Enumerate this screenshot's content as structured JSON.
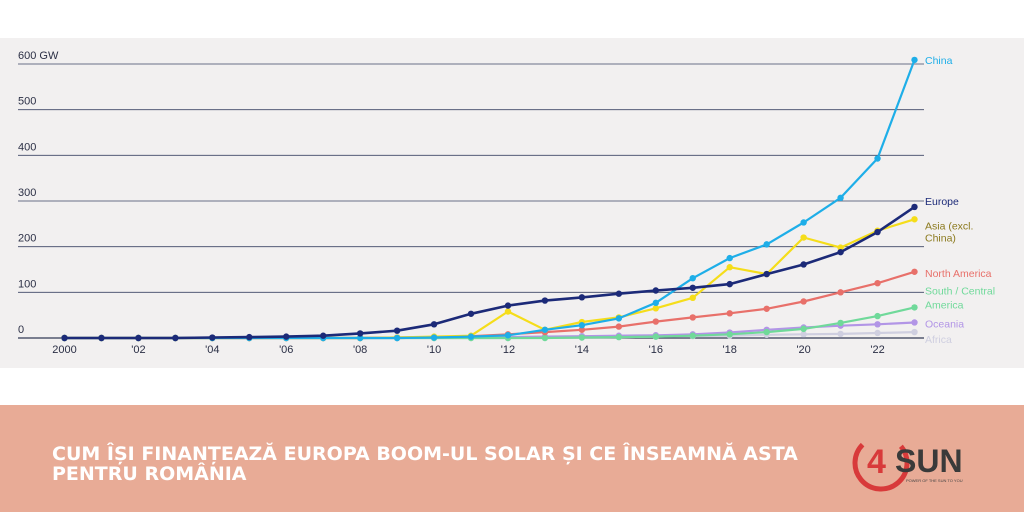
{
  "chart_data": {
    "type": "line",
    "x_ticks": [
      "2000",
      "'02",
      "'04",
      "'06",
      "'08",
      "'10",
      "'12",
      "'14",
      "'16",
      "'18",
      "'20",
      "'22"
    ],
    "x_tick_years": [
      2000,
      2002,
      2004,
      2006,
      2008,
      2010,
      2012,
      2014,
      2016,
      2018,
      2020,
      2022
    ],
    "xlim": [
      2000,
      2023
    ],
    "y_ticks": [
      {
        "value": 0,
        "label": "0"
      },
      {
        "value": 100,
        "label": "100"
      },
      {
        "value": 200,
        "label": "200"
      },
      {
        "value": 300,
        "label": "300"
      },
      {
        "value": 400,
        "label": "400"
      },
      {
        "value": 500,
        "label": "500"
      },
      {
        "value": 600,
        "label": "600 GW"
      }
    ],
    "ylim": [
      0,
      600
    ],
    "grid": true,
    "legend_placement": "right, end of lines",
    "series": [
      {
        "name": "China",
        "color": "#1eaee8",
        "x": [
          2000,
          2001,
          2002,
          2003,
          2004,
          2005,
          2006,
          2007,
          2008,
          2009,
          2010,
          2011,
          2012,
          2013,
          2014,
          2015,
          2016,
          2017,
          2018,
          2019,
          2020,
          2021,
          2022,
          2023
        ],
        "values": [
          0,
          0,
          0,
          0,
          0,
          0,
          0,
          0,
          0,
          0,
          1,
          3,
          6,
          18,
          28,
          43,
          77,
          131,
          175,
          205,
          253,
          307,
          393,
          609
        ]
      },
      {
        "name": "Europe",
        "color": "#1c2a78",
        "x": [
          2000,
          2001,
          2002,
          2003,
          2004,
          2005,
          2006,
          2007,
          2008,
          2009,
          2010,
          2011,
          2012,
          2013,
          2014,
          2015,
          2016,
          2017,
          2018,
          2019,
          2020,
          2021,
          2022,
          2023
        ],
        "values": [
          0,
          0,
          0,
          0,
          1,
          2,
          3,
          5,
          10,
          16,
          30,
          53,
          71,
          82,
          89,
          97,
          104,
          110,
          118,
          140,
          161,
          188,
          232,
          287
        ]
      },
      {
        "name": "Asia (excl. China)",
        "color": "#f5dd1a",
        "x": [
          2000,
          2001,
          2002,
          2003,
          2004,
          2005,
          2006,
          2007,
          2008,
          2009,
          2010,
          2011,
          2012,
          2013,
          2014,
          2015,
          2016,
          2017,
          2018,
          2019,
          2020,
          2021,
          2022,
          2023
        ],
        "values": [
          0,
          0,
          0,
          0,
          0,
          0,
          0,
          0,
          0,
          1,
          3,
          5,
          58,
          18,
          35,
          45,
          65,
          88,
          155,
          140,
          220,
          198,
          235,
          260
        ]
      },
      {
        "name": "North America",
        "color": "#e8706a",
        "x": [
          2000,
          2001,
          2002,
          2003,
          2004,
          2005,
          2006,
          2007,
          2008,
          2009,
          2010,
          2011,
          2012,
          2013,
          2014,
          2015,
          2016,
          2017,
          2018,
          2019,
          2020,
          2021,
          2022,
          2023
        ],
        "values": [
          0,
          0,
          0,
          0,
          0,
          0,
          0,
          0,
          0,
          1,
          2,
          4,
          8,
          13,
          18,
          25,
          36,
          45,
          54,
          64,
          80,
          100,
          120,
          145
        ]
      },
      {
        "name": "South / Central America",
        "color": "#70d99a",
        "x": [
          2000,
          2001,
          2002,
          2003,
          2004,
          2005,
          2006,
          2007,
          2008,
          2009,
          2010,
          2011,
          2012,
          2013,
          2014,
          2015,
          2016,
          2017,
          2018,
          2019,
          2020,
          2021,
          2022,
          2023
        ],
        "values": [
          0,
          0,
          0,
          0,
          0,
          0,
          0,
          0,
          0,
          0,
          0,
          0,
          0,
          0,
          1,
          2,
          3,
          5,
          8,
          13,
          20,
          33,
          48,
          67
        ]
      },
      {
        "name": "Oceania",
        "color": "#b295e6",
        "x": [
          2000,
          2001,
          2002,
          2003,
          2004,
          2005,
          2006,
          2007,
          2008,
          2009,
          2010,
          2011,
          2012,
          2013,
          2014,
          2015,
          2016,
          2017,
          2018,
          2019,
          2020,
          2021,
          2022,
          2023
        ],
        "values": [
          0,
          0,
          0,
          0,
          0,
          0,
          0,
          0,
          0,
          0,
          1,
          1,
          2,
          3,
          4,
          5,
          6,
          8,
          12,
          18,
          23,
          27,
          30,
          34
        ]
      },
      {
        "name": "Africa",
        "color": "#cfcfe0",
        "x": [
          2000,
          2001,
          2002,
          2003,
          2004,
          2005,
          2006,
          2007,
          2008,
          2009,
          2010,
          2011,
          2012,
          2013,
          2014,
          2015,
          2016,
          2017,
          2018,
          2019,
          2020,
          2021,
          2022,
          2023
        ],
        "values": [
          0,
          0,
          0,
          0,
          0,
          0,
          0,
          0,
          0,
          0,
          0,
          0,
          0,
          1,
          1,
          2,
          3,
          4,
          5,
          7,
          8,
          9,
          11,
          13
        ]
      }
    ]
  },
  "banner": {
    "headline": "CUM ÎȘI FINANȚEAZĂ EUROPA BOOM-UL SOLAR ȘI CE ÎNSEAMNĂ ASTA PENTRU ROMÂNIA",
    "background_color": "#e8ab96"
  },
  "logo": {
    "digit": "4",
    "wordmark": "SUN",
    "tagline": "POWER OF THE SUN TO YOU",
    "brand_color": "#d83a3a"
  }
}
